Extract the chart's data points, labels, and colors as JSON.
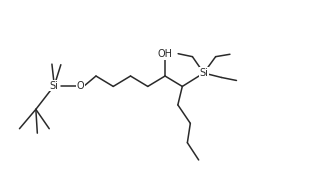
{
  "background": "#ffffff",
  "line_color": "#2a2a2a",
  "line_width": 1.1,
  "font_size": 7.0,
  "labels": {
    "Si_left": "Si",
    "O": "O",
    "OH": "OH",
    "Si_right": "Si"
  },
  "figsize": [
    3.14,
    1.8
  ],
  "dpi": 100,
  "xlim": [
    0,
    10
  ],
  "ylim": [
    0,
    6
  ]
}
